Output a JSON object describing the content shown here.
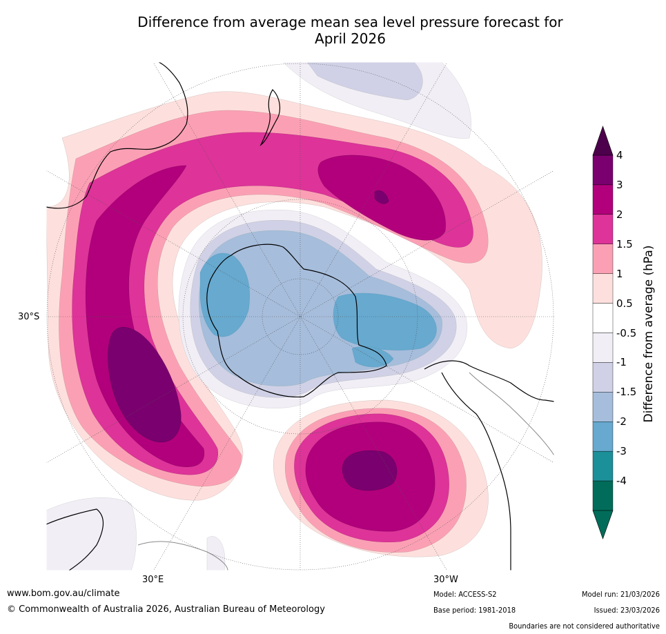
{
  "title_line1": "Difference from average mean sea level pressure forecast for",
  "title_line2": "April 2026",
  "colorbar": {
    "label": "Difference from average (hPa)",
    "ticks": [
      "4",
      "3",
      "2",
      "1.5",
      "1",
      "0.5",
      "-0.5",
      "-1",
      "-1.5",
      "-2",
      "-3",
      "-4"
    ],
    "colors": [
      "#7a006f",
      "#b2007c",
      "#de3399",
      "#fba0b4",
      "#fde0dd",
      "#ffffff",
      "#f1eef6",
      "#d0d1e6",
      "#a6bddb",
      "#67a9cf",
      "#1c9099",
      "#016c59"
    ],
    "over_color": "#4d004b",
    "under_color": "#016c59"
  },
  "axis_labels": {
    "lat_30s": "30°S",
    "lon_30e": "30°E",
    "lon_30w": "30°W"
  },
  "footer": {
    "url": "www.bom.gov.au/climate",
    "copyright": "© Commonwealth of Australia 2026, Australian Bureau of Meteorology",
    "model": "Model: ACCESS-S2",
    "base_period": "Base period: 1981-2018",
    "model_run": "Model run: 21/03/2026",
    "issued": "Issued: 23/03/2026",
    "disclaimer": "Boundaries are not considered authoritative"
  }
}
